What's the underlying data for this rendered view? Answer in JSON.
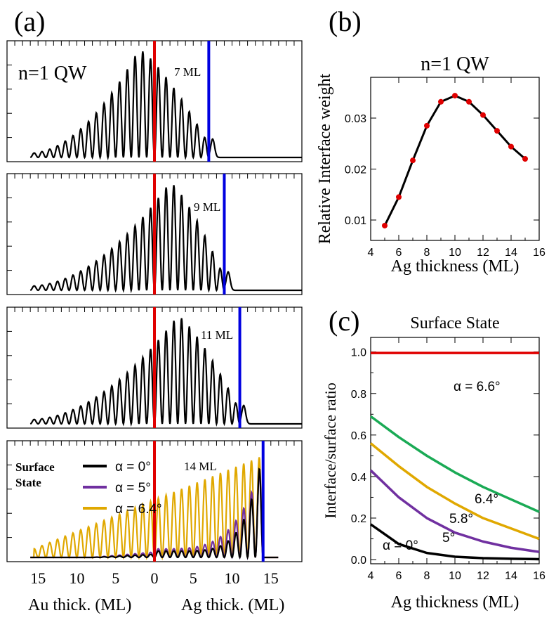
{
  "chart_data": [
    {
      "panel": "(a)",
      "type": "line",
      "subpanels": [
        {
          "title": "n=1 QW",
          "label": "7 ML",
          "ag_ml": 7,
          "peak_x": -2
        },
        {
          "label": "9 ML",
          "ag_ml": 9,
          "peak_x": 2
        },
        {
          "label": "11 ML",
          "ag_ml": 11,
          "peak_x": 3
        },
        {
          "label": "14 ML",
          "ag_ml": 14,
          "legend_title": "Surface State",
          "series": [
            {
              "name": "α = 0°",
              "color": "#000000"
            },
            {
              "name": "α = 5°",
              "color": "#7030a0"
            },
            {
              "name": "α = 6.4°",
              "color": "#e0a800"
            }
          ]
        }
      ],
      "xticks": [
        "15",
        "10",
        "5",
        "0",
        "5",
        "10",
        "15"
      ],
      "xlabel_left": "Au thick. (ML)",
      "xlabel_right": "Ag thick. (ML)",
      "interface_line_color": "#e00000",
      "surface_line_color": "#0000e0"
    },
    {
      "panel": "(b)",
      "type": "line",
      "title": "n=1 QW",
      "xlabel": "Ag thickness (ML)",
      "ylabel": "Relative Interface weight",
      "x": [
        5,
        6,
        7,
        8,
        9,
        10,
        11,
        12,
        13,
        14,
        15
      ],
      "y": [
        0.0089,
        0.0145,
        0.0217,
        0.0285,
        0.0332,
        0.0344,
        0.0332,
        0.0306,
        0.0275,
        0.0244,
        0.022
      ],
      "xlim": [
        4,
        16
      ],
      "ylim": [
        0.006,
        0.038
      ],
      "xticks": [
        "4",
        "6",
        "8",
        "10",
        "12",
        "14",
        "16"
      ],
      "yticks": [
        "0.01",
        "0.02",
        "0.03"
      ],
      "marker_color": "#e00000"
    },
    {
      "panel": "(c)",
      "type": "line",
      "title": "Surface State",
      "xlabel": "Ag thickness (ML)",
      "ylabel": "Interface/surface ratio",
      "xlim": [
        4,
        16
      ],
      "ylim": [
        -0.02,
        1.07
      ],
      "xticks": [
        "4",
        "6",
        "8",
        "10",
        "12",
        "14",
        "16"
      ],
      "yticks": [
        "0.0",
        "0.2",
        "0.4",
        "0.6",
        "0.8",
        "1.0"
      ],
      "series": [
        {
          "name": "α = 6.6°",
          "color": "#e00000",
          "x": [
            4,
            16
          ],
          "y": [
            0.995,
            0.995
          ]
        },
        {
          "name": "6.4°",
          "color": "#1aaa55",
          "x": [
            4,
            6,
            8,
            10,
            12,
            14,
            16
          ],
          "y": [
            0.69,
            0.59,
            0.5,
            0.42,
            0.35,
            0.29,
            0.23
          ]
        },
        {
          "name": "5.8°",
          "color": "#e0a800",
          "x": [
            4,
            6,
            8,
            10,
            12,
            14,
            16
          ],
          "y": [
            0.56,
            0.45,
            0.35,
            0.27,
            0.2,
            0.15,
            0.1
          ]
        },
        {
          "name": "5°",
          "color": "#7030a0",
          "x": [
            4,
            6,
            8,
            10,
            12,
            14,
            16
          ],
          "y": [
            0.43,
            0.3,
            0.2,
            0.13,
            0.087,
            0.057,
            0.037
          ]
        },
        {
          "name": "α = 0°",
          "color": "#000000",
          "x": [
            4,
            6,
            8,
            10,
            12,
            14,
            16
          ],
          "y": [
            0.17,
            0.075,
            0.032,
            0.014,
            0.007,
            0.004,
            0.002
          ]
        }
      ]
    }
  ],
  "panel_labels": [
    "(a)",
    "(b)",
    "(c)"
  ]
}
